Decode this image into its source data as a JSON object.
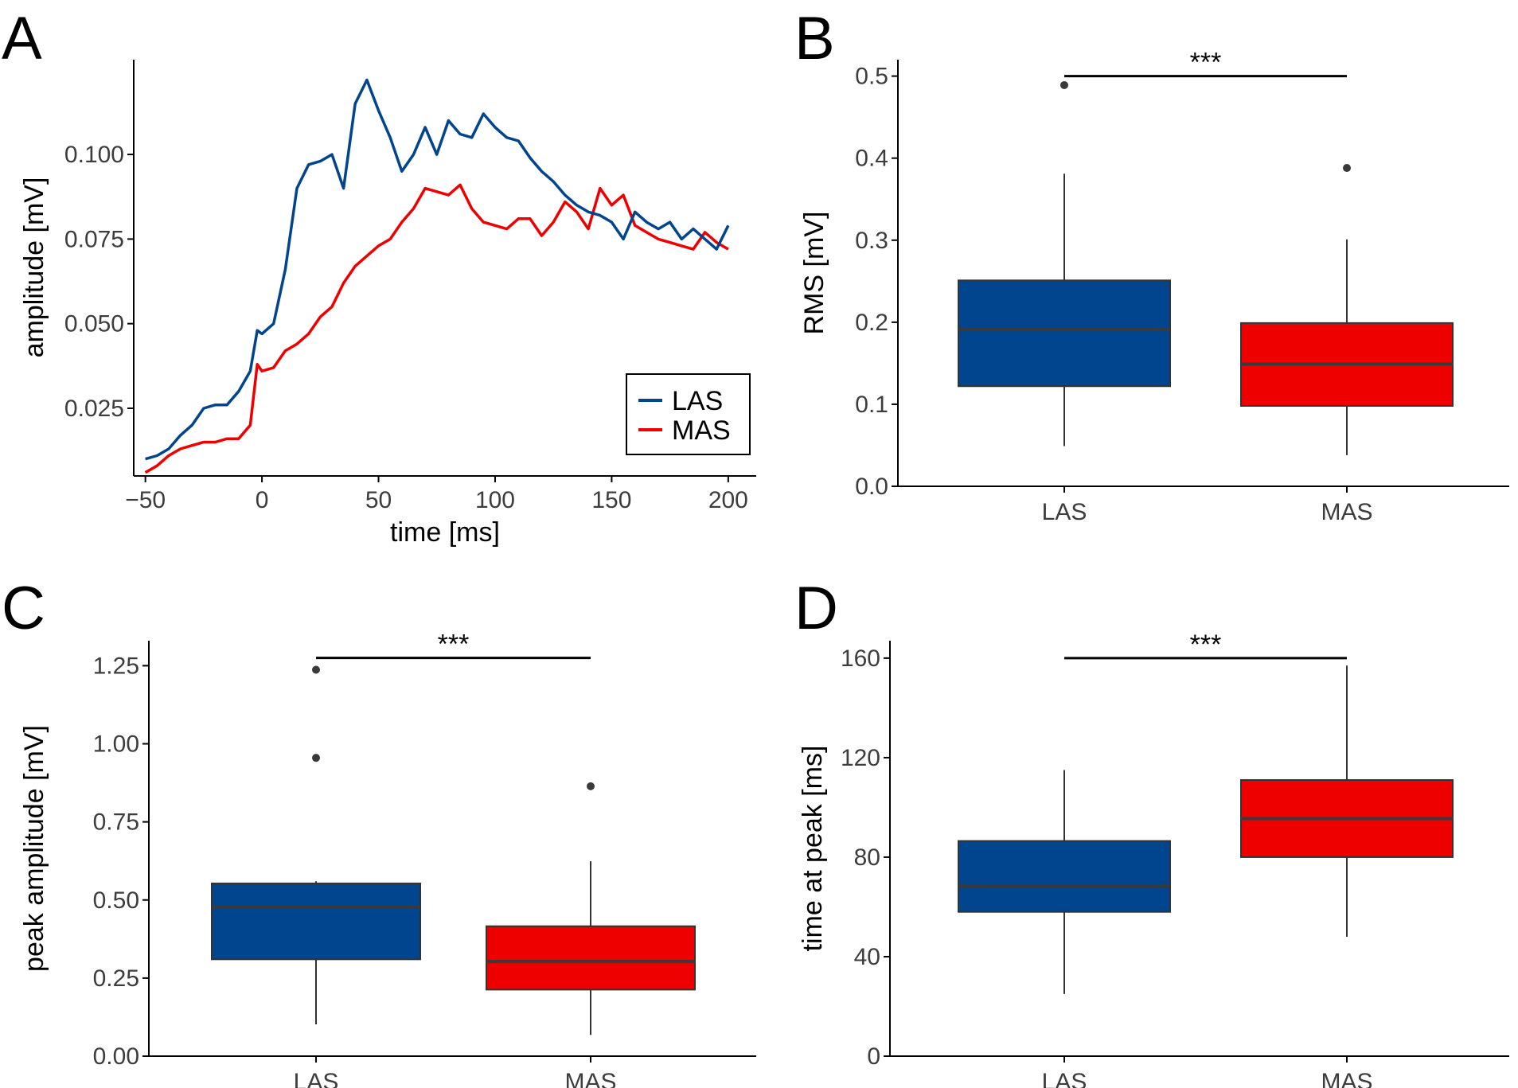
{
  "colors": {
    "LAS": "#00458d",
    "MAS": "#ef0000",
    "median": "#3a3a3a",
    "whisker": "#333333",
    "outlier": "#3a3a3a"
  },
  "chart_data": [
    {
      "panel": "A",
      "type": "line",
      "xlabel": "time [ms]",
      "ylabel": "amplitude [mV]",
      "xlim": [
        -55,
        212
      ],
      "ylim": [
        0.005,
        0.128
      ],
      "xticks": [
        -50,
        0,
        50,
        100,
        150,
        200
      ],
      "xtick_labels": [
        "−50",
        "0",
        "50",
        "100",
        "150",
        "200"
      ],
      "yticks": [
        0.025,
        0.05,
        0.075,
        0.1
      ],
      "ytick_labels": [
        "0.025",
        "0.050",
        "0.075",
        "0.100"
      ],
      "legend": "bottom-right",
      "x": [
        -50,
        -45,
        -40,
        -35,
        -30,
        -25,
        -20,
        -15,
        -10,
        -5,
        -2,
        0,
        5,
        10,
        15,
        20,
        25,
        30,
        35,
        40,
        45,
        50,
        55,
        60,
        65,
        70,
        75,
        80,
        85,
        90,
        95,
        100,
        105,
        110,
        115,
        120,
        125,
        130,
        135,
        140,
        145,
        150,
        155,
        160,
        165,
        170,
        175,
        180,
        185,
        190,
        195,
        200
      ],
      "series": [
        {
          "name": "LAS",
          "values": [
            0.01,
            0.011,
            0.013,
            0.017,
            0.02,
            0.025,
            0.026,
            0.026,
            0.03,
            0.036,
            0.048,
            0.047,
            0.05,
            0.066,
            0.09,
            0.097,
            0.098,
            0.1,
            0.09,
            0.115,
            0.122,
            0.113,
            0.105,
            0.095,
            0.1,
            0.108,
            0.1,
            0.11,
            0.106,
            0.105,
            0.112,
            0.108,
            0.105,
            0.104,
            0.099,
            0.095,
            0.092,
            0.088,
            0.085,
            0.083,
            0.082,
            0.08,
            0.075,
            0.083,
            0.08,
            0.078,
            0.08,
            0.075,
            0.078,
            0.075,
            0.072,
            0.079
          ]
        },
        {
          "name": "MAS",
          "values": [
            0.006,
            0.008,
            0.011,
            0.013,
            0.014,
            0.015,
            0.015,
            0.016,
            0.016,
            0.02,
            0.038,
            0.036,
            0.037,
            0.042,
            0.044,
            0.047,
            0.052,
            0.055,
            0.062,
            0.067,
            0.07,
            0.073,
            0.075,
            0.08,
            0.084,
            0.09,
            0.089,
            0.088,
            0.091,
            0.084,
            0.08,
            0.079,
            0.078,
            0.081,
            0.081,
            0.076,
            0.08,
            0.086,
            0.083,
            0.078,
            0.09,
            0.085,
            0.088,
            0.079,
            0.077,
            0.075,
            0.074,
            0.073,
            0.072,
            0.077,
            0.074,
            0.072
          ]
        }
      ]
    },
    {
      "panel": "B",
      "type": "box",
      "xlabel": "",
      "ylabel": "RMS [mV]",
      "ylim": [
        0.0,
        0.52
      ],
      "yticks": [
        0.0,
        0.1,
        0.2,
        0.3,
        0.4,
        0.5
      ],
      "ytick_labels": [
        "0.0",
        "0.1",
        "0.2",
        "0.3",
        "0.4",
        "0.5"
      ],
      "categories": [
        "LAS",
        "MAS"
      ],
      "boxes": [
        {
          "name": "LAS",
          "min": 0.049,
          "q1": 0.122,
          "median": 0.191,
          "q3": 0.251,
          "max": 0.381,
          "outliers": [
            0.489
          ]
        },
        {
          "name": "MAS",
          "min": 0.038,
          "q1": 0.098,
          "median": 0.149,
          "q3": 0.199,
          "max": 0.301,
          "outliers": [
            0.388
          ]
        }
      ],
      "significance": {
        "label": "***",
        "y": 0.5
      }
    },
    {
      "panel": "C",
      "type": "box",
      "xlabel": "",
      "ylabel": "peak amplitude [mV]",
      "ylim": [
        0.0,
        1.33
      ],
      "yticks": [
        0.0,
        0.25,
        0.5,
        0.75,
        1.0,
        1.25
      ],
      "ytick_labels": [
        "0.00",
        "0.25",
        "0.50",
        "0.75",
        "1.00",
        "1.25"
      ],
      "categories": [
        "LAS",
        "MAS"
      ],
      "boxes": [
        {
          "name": "LAS",
          "min": 0.102,
          "q1": 0.31,
          "median": 0.478,
          "q3": 0.553,
          "max": 0.56,
          "outliers": [
            0.955,
            1.237
          ]
        },
        {
          "name": "MAS",
          "min": 0.068,
          "q1": 0.213,
          "median": 0.303,
          "q3": 0.416,
          "max": 0.624,
          "outliers": [
            0.864
          ]
        }
      ],
      "significance": {
        "label": "***",
        "y": 1.275
      }
    },
    {
      "panel": "D",
      "type": "box",
      "xlabel": "",
      "ylabel": "time at peak [ms]",
      "ylim": [
        0,
        167
      ],
      "yticks": [
        0,
        40,
        80,
        120,
        160
      ],
      "ytick_labels": [
        "0",
        "40",
        "80",
        "120",
        "160"
      ],
      "categories": [
        "LAS",
        "MAS"
      ],
      "boxes": [
        {
          "name": "LAS",
          "min": 25,
          "q1": 58,
          "median": 68.5,
          "q3": 86.5,
          "max": 115,
          "outliers": []
        },
        {
          "name": "MAS",
          "min": 48,
          "q1": 80,
          "median": 95.5,
          "q3": 111,
          "max": 157,
          "outliers": []
        }
      ],
      "significance": {
        "label": "***",
        "y": 160
      }
    }
  ]
}
